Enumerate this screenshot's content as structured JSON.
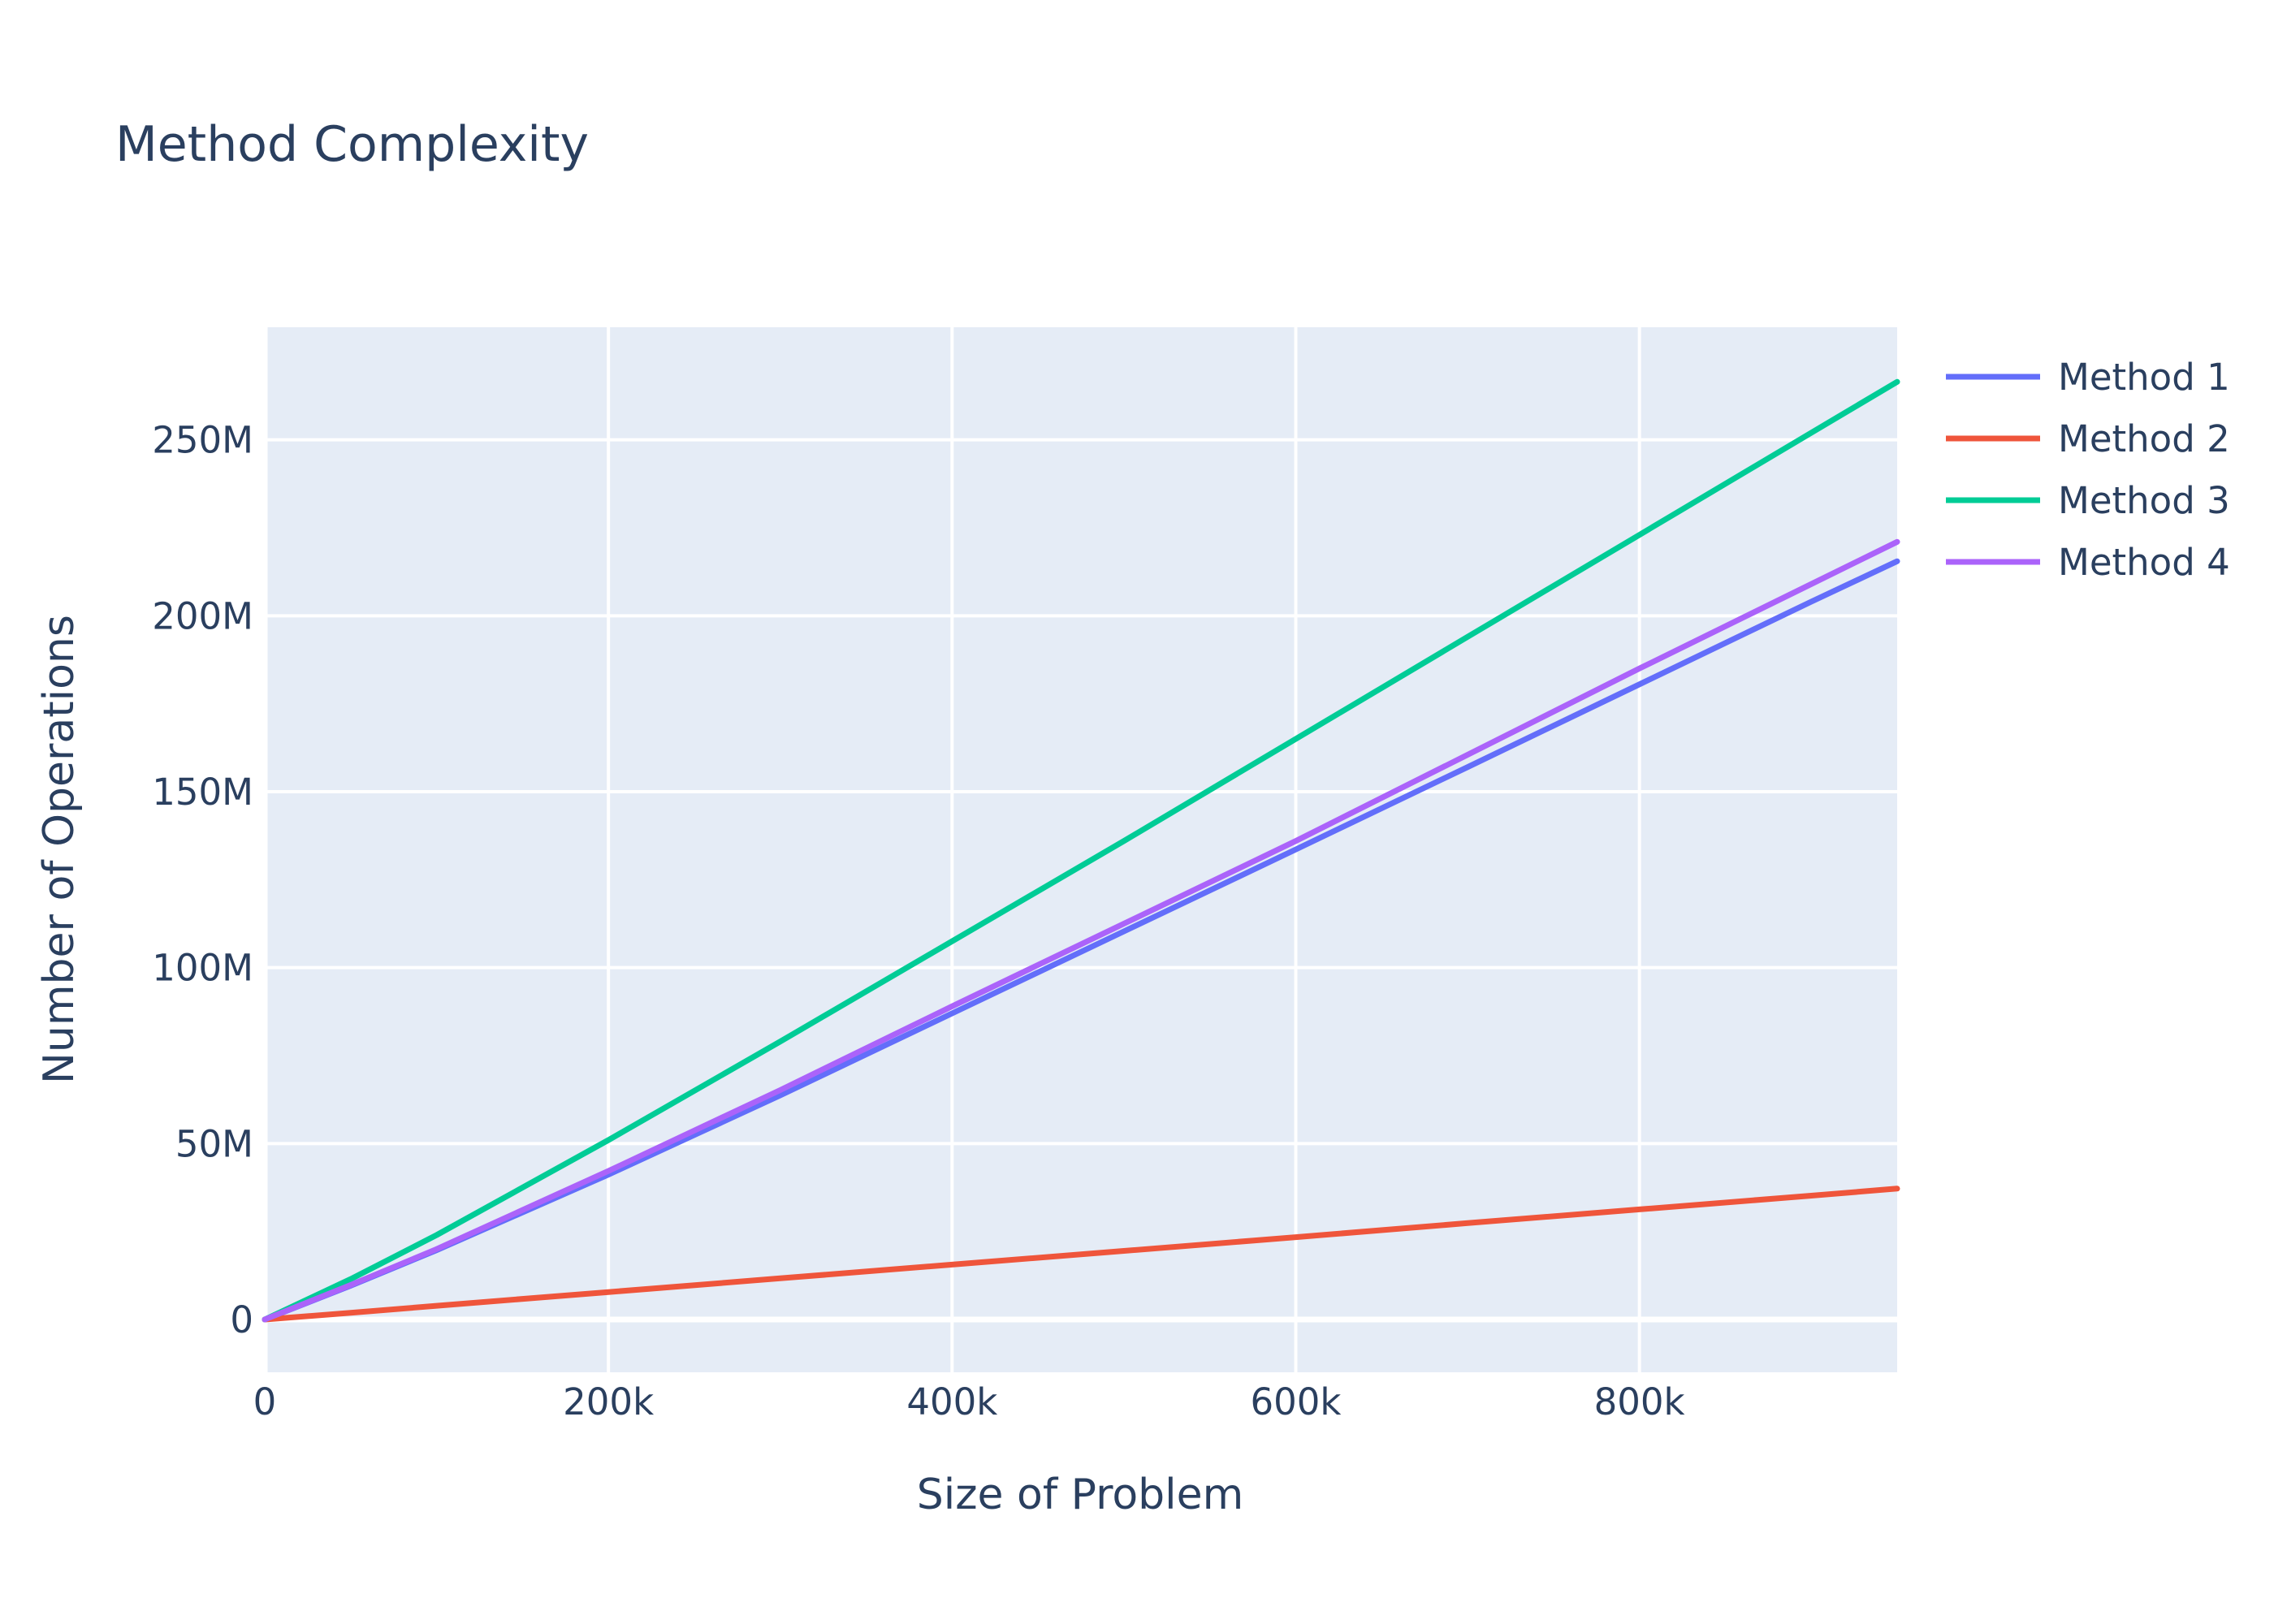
{
  "chart_data": {
    "type": "line",
    "title": "Method Complexity",
    "xlabel": "Size of Problem",
    "ylabel": "Number of Operations",
    "xlim": [
      0,
      950000
    ],
    "ylim": [
      -15000000,
      282000000
    ],
    "x_ticks": [
      {
        "value": 0,
        "label": "0"
      },
      {
        "value": 200000,
        "label": "200k"
      },
      {
        "value": 400000,
        "label": "400k"
      },
      {
        "value": 600000,
        "label": "600k"
      },
      {
        "value": 800000,
        "label": "800k"
      }
    ],
    "y_ticks": [
      {
        "value": 0,
        "label": "0"
      },
      {
        "value": 50000000,
        "label": "50M"
      },
      {
        "value": 100000000,
        "label": "100M"
      },
      {
        "value": 150000000,
        "label": "150M"
      },
      {
        "value": 200000000,
        "label": "200M"
      },
      {
        "value": 250000000,
        "label": "250M"
      }
    ],
    "grid": true,
    "legend_position": "top-right",
    "series": [
      {
        "name": "Method 1",
        "color": "#636efa",
        "x": [
          0,
          50000,
          100000,
          200000,
          300000,
          400000,
          500000,
          600000,
          700000,
          800000,
          900000,
          950000
        ],
        "y": [
          0,
          9600000,
          19700000,
          41200000,
          63700000,
          87000000,
          110300000,
          133600000,
          157000000,
          180500000,
          204000000,
          215500000
        ]
      },
      {
        "name": "Method 2",
        "color": "#ef553b",
        "x": [
          0,
          50000,
          100000,
          200000,
          300000,
          400000,
          500000,
          600000,
          700000,
          800000,
          900000,
          950000
        ],
        "y": [
          0,
          1900000,
          3900000,
          7800000,
          11700000,
          15600000,
          19500000,
          23400000,
          27400000,
          31300000,
          35200000,
          37200000
        ]
      },
      {
        "name": "Method 3",
        "color": "#00cc96",
        "x": [
          0,
          50000,
          100000,
          200000,
          300000,
          400000,
          500000,
          600000,
          700000,
          800000,
          900000,
          950000
        ],
        "y": [
          0,
          11500000,
          24000000,
          51000000,
          79000000,
          107500000,
          136000000,
          165000000,
          194000000,
          223000000,
          252000000,
          266500000
        ]
      },
      {
        "name": "Method 4",
        "color": "#ab63fa",
        "x": [
          0,
          50000,
          100000,
          200000,
          300000,
          400000,
          500000,
          600000,
          700000,
          800000,
          900000,
          950000
        ],
        "y": [
          0,
          9800000,
          20000000,
          42200000,
          65200000,
          89000000,
          112500000,
          136000000,
          160500000,
          185000000,
          209000000,
          221000000
        ]
      }
    ]
  }
}
